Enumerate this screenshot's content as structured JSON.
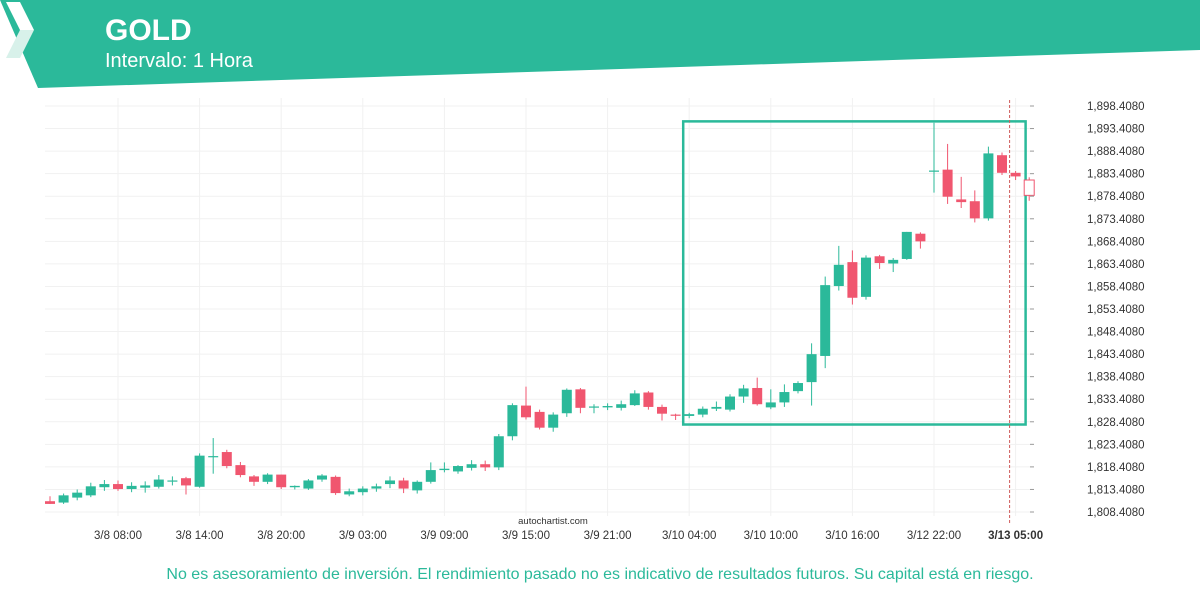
{
  "header": {
    "title": "GOLD",
    "interval_label": "Intervalo:",
    "interval_value": "1 Hora",
    "brand_color": "#2bb99a"
  },
  "watermark": "autochartist.com",
  "disclaimer": "No es asesoramiento de inversión. El rendimiento pasado no es indicativo de resultados futuros. Su capital está en riesgo.",
  "chart_data": {
    "type": "candlestick",
    "y_ticks": [
      "1,808.4080",
      "1,813.4080",
      "1,818.4080",
      "1,823.4080",
      "1,828.4080",
      "1,833.4080",
      "1,838.4080",
      "1,843.4080",
      "1,848.4080",
      "1,853.4080",
      "1,858.4080",
      "1,863.4080",
      "1,868.4080",
      "1,873.4080",
      "1,878.4080",
      "1,883.4080",
      "1,888.4080",
      "1,893.4080",
      "1,898.4080"
    ],
    "ylim": [
      1808.408,
      1898.408
    ],
    "y_axis_position": "right",
    "x_ticks": [
      {
        "label": "3/8 08:00",
        "index": 5
      },
      {
        "label": "3/8 14:00",
        "index": 11
      },
      {
        "label": "3/8 20:00",
        "index": 17
      },
      {
        "label": "3/9 03:00",
        "index": 23
      },
      {
        "label": "3/9 09:00",
        "index": 29
      },
      {
        "label": "3/9 15:00",
        "index": 35
      },
      {
        "label": "3/9 21:00",
        "index": 41
      },
      {
        "label": "3/10 04:00",
        "index": 47
      },
      {
        "label": "3/10 10:00",
        "index": 53
      },
      {
        "label": "3/10 16:00",
        "index": 59
      },
      {
        "label": "3/12 22:00",
        "index": 65
      },
      {
        "label": "3/13 05:00",
        "index": 71,
        "bold": true
      }
    ],
    "up_color": "#2bb99a",
    "down_color": "#f0566f",
    "candles": [
      {
        "o": 1810.8,
        "h": 1811.9,
        "l": 1810.2,
        "c": 1810.2
      },
      {
        "o": 1810.5,
        "h": 1812.5,
        "l": 1810.2,
        "c": 1812.1
      },
      {
        "o": 1811.6,
        "h": 1813.4,
        "l": 1811.0,
        "c": 1812.7
      },
      {
        "o": 1812.1,
        "h": 1814.9,
        "l": 1811.7,
        "c": 1814.1
      },
      {
        "o": 1813.9,
        "h": 1815.5,
        "l": 1813.1,
        "c": 1814.6
      },
      {
        "o": 1814.6,
        "h": 1815.4,
        "l": 1813.1,
        "c": 1813.5
      },
      {
        "o": 1813.5,
        "h": 1815.0,
        "l": 1812.8,
        "c": 1814.2
      },
      {
        "o": 1813.8,
        "h": 1815.2,
        "l": 1812.7,
        "c": 1814.3
      },
      {
        "o": 1814.0,
        "h": 1816.6,
        "l": 1813.6,
        "c": 1815.6
      },
      {
        "o": 1815.3,
        "h": 1816.3,
        "l": 1814.3,
        "c": 1815.4
      },
      {
        "o": 1815.9,
        "h": 1816.2,
        "l": 1812.3,
        "c": 1814.3
      },
      {
        "o": 1814.0,
        "h": 1821.4,
        "l": 1813.8,
        "c": 1820.9
      },
      {
        "o": 1820.8,
        "h": 1824.8,
        "l": 1816.9,
        "c": 1820.8
      },
      {
        "o": 1821.7,
        "h": 1822.2,
        "l": 1818.1,
        "c": 1818.6
      },
      {
        "o": 1818.8,
        "h": 1819.5,
        "l": 1816.1,
        "c": 1816.6
      },
      {
        "o": 1816.3,
        "h": 1816.6,
        "l": 1814.2,
        "c": 1815.1
      },
      {
        "o": 1815.1,
        "h": 1817.0,
        "l": 1814.6,
        "c": 1816.7
      },
      {
        "o": 1816.7,
        "h": 1816.7,
        "l": 1813.5,
        "c": 1813.9
      },
      {
        "o": 1813.9,
        "h": 1814.3,
        "l": 1813.4,
        "c": 1814.2
      },
      {
        "o": 1813.6,
        "h": 1815.7,
        "l": 1813.3,
        "c": 1815.4
      },
      {
        "o": 1815.6,
        "h": 1816.8,
        "l": 1815.1,
        "c": 1816.5
      },
      {
        "o": 1816.2,
        "h": 1816.5,
        "l": 1812.2,
        "c": 1812.6
      },
      {
        "o": 1812.3,
        "h": 1813.6,
        "l": 1811.9,
        "c": 1813.0
      },
      {
        "o": 1812.8,
        "h": 1814.1,
        "l": 1812.1,
        "c": 1813.6
      },
      {
        "o": 1813.6,
        "h": 1814.7,
        "l": 1812.9,
        "c": 1814.1
      },
      {
        "o": 1814.6,
        "h": 1816.3,
        "l": 1813.7,
        "c": 1815.4
      },
      {
        "o": 1815.4,
        "h": 1816.0,
        "l": 1812.6,
        "c": 1813.6
      },
      {
        "o": 1813.2,
        "h": 1815.4,
        "l": 1812.5,
        "c": 1815.1
      },
      {
        "o": 1815.1,
        "h": 1819.4,
        "l": 1814.7,
        "c": 1817.7
      },
      {
        "o": 1817.7,
        "h": 1819.4,
        "l": 1817.2,
        "c": 1818.0
      },
      {
        "o": 1817.4,
        "h": 1818.8,
        "l": 1816.9,
        "c": 1818.6
      },
      {
        "o": 1818.2,
        "h": 1819.9,
        "l": 1817.6,
        "c": 1819.0
      },
      {
        "o": 1819.0,
        "h": 1819.8,
        "l": 1817.5,
        "c": 1818.3
      },
      {
        "o": 1818.3,
        "h": 1825.7,
        "l": 1817.7,
        "c": 1825.2
      },
      {
        "o": 1825.2,
        "h": 1832.5,
        "l": 1824.3,
        "c": 1832.1
      },
      {
        "o": 1832.0,
        "h": 1836.2,
        "l": 1828.9,
        "c": 1829.4
      },
      {
        "o": 1830.6,
        "h": 1831.1,
        "l": 1826.7,
        "c": 1827.1
      },
      {
        "o": 1827.1,
        "h": 1830.5,
        "l": 1826.2,
        "c": 1830.0
      },
      {
        "o": 1830.3,
        "h": 1835.8,
        "l": 1829.5,
        "c": 1835.5
      },
      {
        "o": 1835.6,
        "h": 1835.9,
        "l": 1830.3,
        "c": 1831.5
      },
      {
        "o": 1831.7,
        "h": 1832.3,
        "l": 1830.3,
        "c": 1831.8
      },
      {
        "o": 1831.6,
        "h": 1832.5,
        "l": 1831.0,
        "c": 1831.9
      },
      {
        "o": 1831.5,
        "h": 1833.1,
        "l": 1830.9,
        "c": 1832.3
      },
      {
        "o": 1832.1,
        "h": 1835.4,
        "l": 1831.9,
        "c": 1834.7
      },
      {
        "o": 1834.9,
        "h": 1835.2,
        "l": 1831.1,
        "c": 1831.7
      },
      {
        "o": 1831.7,
        "h": 1832.2,
        "l": 1828.7,
        "c": 1830.2
      },
      {
        "o": 1830.0,
        "h": 1830.2,
        "l": 1828.8,
        "c": 1829.8
      },
      {
        "o": 1829.7,
        "h": 1830.4,
        "l": 1829.2,
        "c": 1830.1
      },
      {
        "o": 1830.0,
        "h": 1831.8,
        "l": 1829.4,
        "c": 1831.3
      },
      {
        "o": 1831.3,
        "h": 1832.9,
        "l": 1830.8,
        "c": 1831.7
      },
      {
        "o": 1831.1,
        "h": 1834.5,
        "l": 1830.7,
        "c": 1834.0
      },
      {
        "o": 1834.0,
        "h": 1836.6,
        "l": 1832.6,
        "c": 1835.8
      },
      {
        "o": 1835.9,
        "h": 1838.2,
        "l": 1832.0,
        "c": 1832.3
      },
      {
        "o": 1831.6,
        "h": 1835.6,
        "l": 1831.2,
        "c": 1832.7
      },
      {
        "o": 1832.7,
        "h": 1836.7,
        "l": 1831.7,
        "c": 1835.0
      },
      {
        "o": 1835.2,
        "h": 1837.4,
        "l": 1834.7,
        "c": 1837.0
      },
      {
        "o": 1837.2,
        "h": 1845.8,
        "l": 1832.0,
        "c": 1843.4
      },
      {
        "o": 1843.0,
        "h": 1860.6,
        "l": 1840.3,
        "c": 1858.7
      },
      {
        "o": 1858.5,
        "h": 1867.4,
        "l": 1857.5,
        "c": 1863.2
      },
      {
        "o": 1863.8,
        "h": 1866.4,
        "l": 1854.4,
        "c": 1855.9
      },
      {
        "o": 1856.1,
        "h": 1865.3,
        "l": 1855.5,
        "c": 1864.8
      },
      {
        "o": 1865.1,
        "h": 1865.4,
        "l": 1862.3,
        "c": 1863.6
      },
      {
        "o": 1863.5,
        "h": 1864.7,
        "l": 1861.6,
        "c": 1864.3
      },
      {
        "o": 1864.5,
        "h": 1870.5,
        "l": 1864.3,
        "c": 1870.5
      },
      {
        "o": 1870.1,
        "h": 1870.4,
        "l": 1866.8,
        "c": 1868.4
      },
      {
        "o": 1883.9,
        "h": 1894.7,
        "l": 1879.2,
        "c": 1884.1
      },
      {
        "o": 1884.3,
        "h": 1890.0,
        "l": 1876.7,
        "c": 1878.3
      },
      {
        "o": 1877.7,
        "h": 1882.7,
        "l": 1875.8,
        "c": 1877.1
      },
      {
        "o": 1877.3,
        "h": 1879.7,
        "l": 1872.6,
        "c": 1873.5
      },
      {
        "o": 1873.5,
        "h": 1889.4,
        "l": 1873.0,
        "c": 1887.9
      },
      {
        "o": 1887.5,
        "h": 1888.1,
        "l": 1883.1,
        "c": 1883.6
      },
      {
        "o": 1883.6,
        "h": 1884.0,
        "l": 1882.0,
        "c": 1882.8
      },
      {
        "o": 1882.0,
        "h": 1882.6,
        "l": 1877.4,
        "c": 1878.6
      }
    ],
    "pattern_box": {
      "start_index": 47,
      "end_index": 71,
      "y_low": 1827.8,
      "y_high": 1895.0
    },
    "marker_index": 71,
    "grid": true
  }
}
